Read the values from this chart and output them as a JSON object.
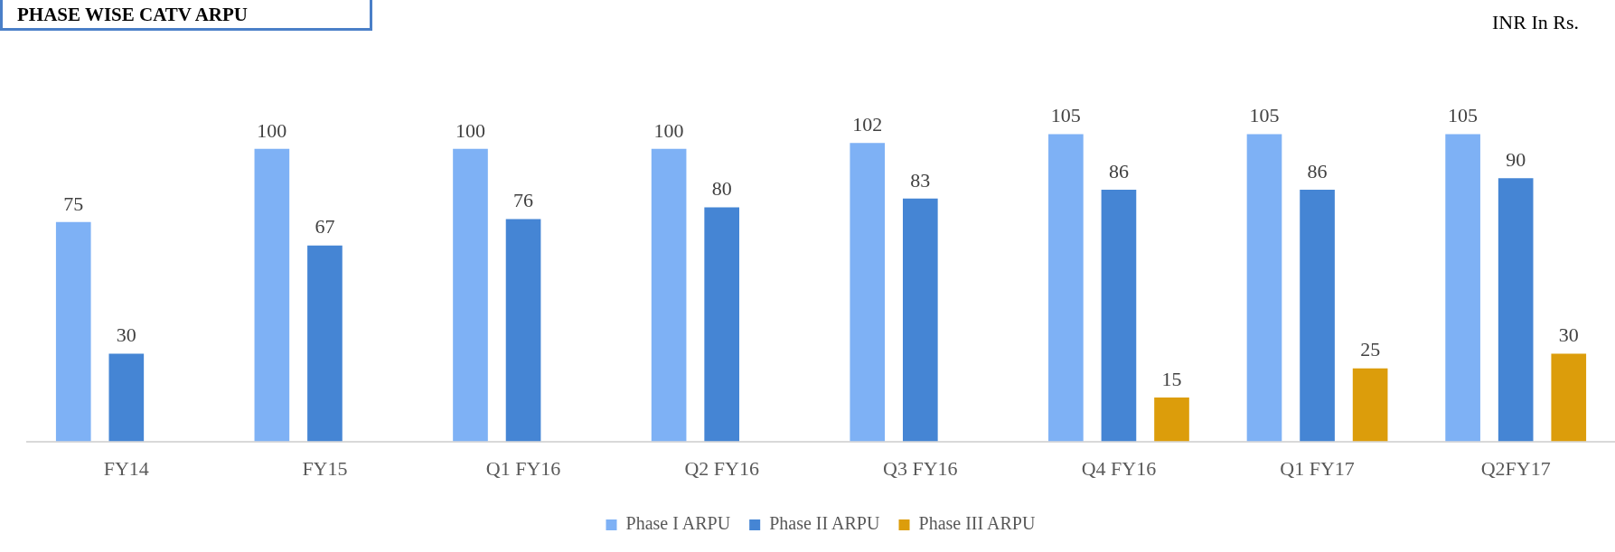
{
  "chart_data": {
    "type": "bar",
    "title": "PHASE WISE CATV ARPU",
    "annotations": [
      "INR In Rs."
    ],
    "categories": [
      "FY14",
      "FY15",
      "Q1 FY16",
      "Q2 FY16",
      "Q3 FY16",
      "Q4 FY16",
      "Q1 FY17",
      "Q2FY17"
    ],
    "series": [
      {
        "name": "Phase I ARPU",
        "color": "#7eb1f5",
        "values": [
          75,
          100,
          100,
          100,
          102,
          105,
          105,
          105
        ]
      },
      {
        "name": "Phase II ARPU",
        "color": "#4585d4",
        "values": [
          30,
          67,
          76,
          80,
          83,
          86,
          86,
          90
        ]
      },
      {
        "name": "Phase III ARPU",
        "color": "#dc9d0b",
        "values": [
          null,
          null,
          null,
          null,
          null,
          15,
          25,
          30
        ]
      }
    ],
    "data_labels": true,
    "grid": false,
    "legend": "bottom",
    "tick_labels": "x"
  }
}
